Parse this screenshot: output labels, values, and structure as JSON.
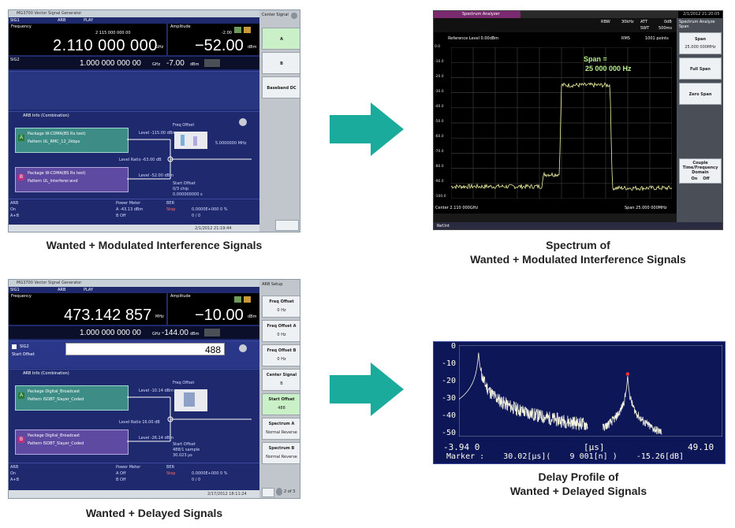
{
  "captions": {
    "top_left": "Wanted + Modulated Interference Signals",
    "top_right_line1": "Spectrum of",
    "top_right_line2": "Wanted + Modulated Interference Signals",
    "bottom_left": "Wanted + Delayed Signals",
    "bottom_right_line1": "Delay Profile of",
    "bottom_right_line2": "Wanted + Delayed Signals"
  },
  "colors": {
    "arrow": "#1bab9c",
    "lcd": "#000000",
    "panel": "#1f2a6e",
    "trace": "#f0f0a0",
    "spec_title": "#7a2a6e"
  },
  "vsg1": {
    "title": "MG3700 Vector Signal Generator",
    "tabs": [
      "SIG1",
      "ARB",
      "PLAY"
    ],
    "side_title": "Center Signal",
    "freq_label": "Frequency",
    "freq_sub": "2 115 000 000 00",
    "freq_value": "2.110 000 000 00",
    "freq_unit": "GHz",
    "amp_label": "Amplitude",
    "amp_sub": "-2.00",
    "amp_value": "−52.00",
    "amp_unit": "dBm",
    "sub_label": "SIG2",
    "sub_freq": "1.000 000 000 00",
    "sub_freq_unit": "GHz",
    "sub_amp": "-7.00",
    "sub_amp_unit": "dBm",
    "arb_info": "ARB Info (Combination)",
    "pkg_a": "Package  W-CDMA(BS Rx test)",
    "pat_a": "Pattern   UL_RMC_12_2kbps",
    "pkg_b": "Package  W-CDMA(BS Rx test)",
    "pat_b": "Pattern   UL_Interferer.wvd",
    "level_a": "Level  -115.00 dBm",
    "level_b": "Level  -52.00 dBm",
    "level_ratio": "Level Ratio  -63.00 dB",
    "freq_offset": "Freq Offset",
    "freq_offset_val": "5.0000000 MHz",
    "start_offset": "Start Offset",
    "start_offset_val": "0/3 chip",
    "start_offset_sub": "0.000000000 s",
    "arb_state": "ARB",
    "arb_on": "On",
    "arb_ab": "A+B",
    "power_meter": "Power Meter",
    "pm_a": "A   -43.13 dBm",
    "pm_b": "B   Off",
    "ber": "BER",
    "ber_stop": "Stop",
    "ber_val": "0.0000E+000    0 %",
    "ber_val2": "0             / 0",
    "timestamp": "2/1/2012 21:19:44",
    "side_buttons": [
      "A",
      "B",
      "Baseband DC"
    ]
  },
  "spectrum": {
    "title": "Spectrum Analyzer",
    "timestamp": "2/1/2012 21:20:05",
    "rbw_label": "RBW",
    "rbw": "30kHz",
    "att_label": "ATT",
    "att": "0dB",
    "swt_label": "SWT",
    "swt": "500ms",
    "ref_level": "Reference Level     0.00dBm",
    "rms": "RMS",
    "points": "1001 points",
    "span_note_line1": "Span =",
    "span_note_line2": "25 000 000 Hz",
    "center": "Center 2.110 000GHz",
    "span": "Span 25.000 000MHz",
    "side_title": "Spectrum Analyze Span",
    "side_buttons": [
      "Span",
      "25.000 000MHz",
      "Full Span",
      "Zero Span",
      "Couple Time/Frequency Domain"
    ],
    "couple_on": "On",
    "couple_off": "Off",
    "y_ticks": [
      "0.0",
      "-10.0",
      "-20.0",
      "-30.0",
      "-40.0",
      "-50.0",
      "-60.0",
      "-70.0",
      "-80.0",
      "-90.0",
      "-100.0"
    ],
    "status": "Ref.Int"
  },
  "vsg2": {
    "title": "MG3700 Vector Signal Generator",
    "tabs": [
      "SIG1",
      "ARB",
      "PLAY"
    ],
    "side_title": "ARB Setup",
    "freq_label": "Frequency",
    "freq_value": "473.142 857 14",
    "freq_unit": "MHz",
    "amp_label": "Amplitude",
    "amp_value": "−10.00",
    "amp_unit": "dBm",
    "sub_freq": "1.000 000 000 00",
    "sub_freq_unit": "GHz",
    "sub_amp": "-144.00",
    "sub_amp_unit": "dBm",
    "edit_label": "SIG2",
    "edit_sub": "Start Offset",
    "edit_value": "488",
    "arb_info": "ARB Info (Combination)",
    "pkg_a": "Package  Digital_Broadcast",
    "pat_a": "Pattern   ISDBT_Slayer_Coded",
    "pkg_b": "Package  Digital_Broadcast",
    "pat_b": "Pattern   ISDBT_Slayer_Coded",
    "level_a": "Level  -10.14 dBm",
    "level_b": "Level  -26.14 dBm",
    "level_ratio": "Level Ratio  16.00 dB",
    "freq_offset": "Freq Offset",
    "start_offset": "Start Offset",
    "start_offset_val": "488/1 sample",
    "start_offset_sub": "30.023 µs",
    "arb_state": "ARB",
    "arb_on": "On",
    "arb_ab": "A+B",
    "power_meter": "Power Meter",
    "pm_a": "A   Off",
    "pm_b": "B   Off",
    "ber": "BER",
    "ber_stop": "Stop",
    "ber_val": "0.0000E+000    0 %",
    "ber_val2": "0             / 0",
    "timestamp": "2/17/2012 18:11:24",
    "page": "2 of 3",
    "side_buttons": [
      {
        "label": "Freq Offset",
        "value": "0 Hz"
      },
      {
        "label": "Freq Offset A",
        "value": "0 Hz"
      },
      {
        "label": "Freq Offset B",
        "value": "0 Hz"
      },
      {
        "label": "Center Signal",
        "value": "B"
      },
      {
        "label": "Start Offset",
        "value": "488"
      },
      {
        "label": "Spectrum A",
        "value": "Normal  Reverse"
      },
      {
        "label": "Spectrum B",
        "value": "Normal  Reverse"
      }
    ]
  },
  "delay_profile": {
    "y_ticks": [
      "0",
      "-10",
      "-20",
      "-30",
      "-40",
      "-50"
    ],
    "x_min": "-3.94 0",
    "x_unit": "[µs]",
    "x_max": "49.10",
    "marker_line": "Marker :    30.02[µs](    9 001[n] )    -15.26[dB]"
  }
}
